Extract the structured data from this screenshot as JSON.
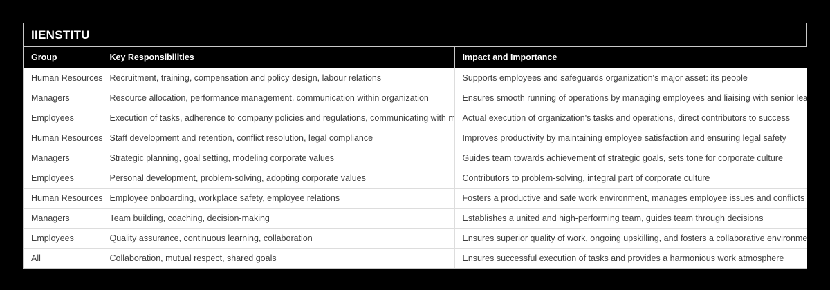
{
  "page": {
    "background_color": "#000000"
  },
  "table": {
    "title": "IIENSTITU",
    "columns": [
      "Group",
      "Key Responsibilities",
      "Impact and Importance"
    ],
    "rows": [
      [
        "Human Resources",
        "Recruitment, training, compensation and policy design, labour relations",
        "Supports employees and safeguards organization's major asset: its people"
      ],
      [
        "Managers",
        "Resource allocation, performance management, communication within organization",
        "Ensures smooth running of operations by managing employees and liaising with senior leadership"
      ],
      [
        "Employees",
        "Execution of tasks, adherence to company policies and regulations, communicating with managers",
        "Actual execution of organization's tasks and operations, direct contributors to success"
      ],
      [
        "Human Resources",
        "Staff development and retention, conflict resolution, legal compliance",
        "Improves productivity by maintaining employee satisfaction and ensuring legal safety"
      ],
      [
        "Managers",
        "Strategic planning, goal setting, modeling corporate values",
        "Guides team towards achievement of strategic goals, sets tone for corporate culture"
      ],
      [
        "Employees",
        "Personal development, problem-solving, adopting corporate values",
        "Contributors to problem-solving, integral part of corporate culture"
      ],
      [
        "Human Resources",
        "Employee onboarding, workplace safety, employee relations",
        "Fosters a productive and safe work environment, manages employee issues and conflicts"
      ],
      [
        "Managers",
        "Team building, coaching, decision-making",
        "Establishes a united and high-performing team, guides team through decisions"
      ],
      [
        "Employees",
        "Quality assurance, continuous learning, collaboration",
        "Ensures superior quality of work, ongoing upskilling, and fosters a collaborative environment"
      ],
      [
        "All",
        "Collaboration, mutual respect, shared goals",
        "Ensures successful execution of tasks and provides a harmonious work atmosphere"
      ]
    ],
    "colors": {
      "header_background": "#000000",
      "header_text": "#ffffff",
      "body_background": "#ffffff",
      "body_text": "#404040",
      "outer_border": "#c9c9c9",
      "row_divider": "#dddddd"
    }
  }
}
